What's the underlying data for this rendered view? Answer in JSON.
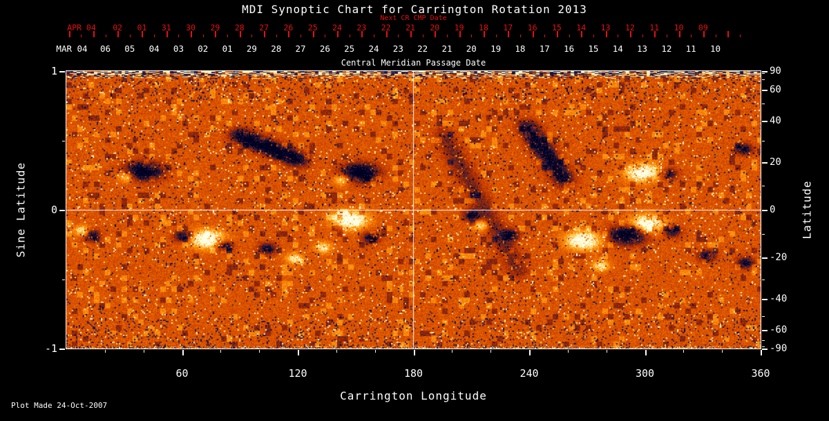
{
  "title": "MDI Synoptic Chart for Carrington Rotation 2013",
  "footer": "Plot Made 24-Oct-2007",
  "colors": {
    "accent_red": "#e81010",
    "foreground": "#ffffff",
    "background": "#000000"
  },
  "axes": {
    "top_red": {
      "label": "Next CR CMP Date",
      "prefix": "APR 04",
      "ticks": [
        "02",
        "01",
        "31",
        "30",
        "29",
        "28",
        "27",
        "26",
        "25",
        "24",
        "23",
        "22",
        "21",
        "20",
        "19",
        "18",
        "17",
        "16",
        "15",
        "14",
        "13",
        "12",
        "11",
        "10",
        "09"
      ]
    },
    "top_white": {
      "label": "Central Meridian Passage Date",
      "prefix": "MAR 04",
      "ticks": [
        "06",
        "05",
        "04",
        "03",
        "02",
        "01",
        "29",
        "28",
        "27",
        "26",
        "25",
        "24",
        "23",
        "22",
        "21",
        "20",
        "19",
        "18",
        "17",
        "16",
        "15",
        "14",
        "13",
        "12",
        "11",
        "10"
      ]
    },
    "bottom": {
      "label": "Carrington Longitude",
      "ticks": [
        "60",
        "120",
        "180",
        "240",
        "300",
        "360"
      ]
    },
    "left": {
      "label": "Sine Latitude",
      "ticks": [
        "1",
        "0",
        "-1"
      ]
    },
    "right": {
      "label": "Latitude",
      "ticks": [
        "90",
        "60",
        "40",
        "20",
        "0",
        "-20",
        "-40",
        "-60",
        "-90"
      ]
    }
  },
  "chart_data": {
    "type": "heatmap",
    "title": "MDI Synoptic Chart for Carrington Rotation 2013",
    "xlabel": "Carrington Longitude",
    "ylabel_left": "Sine Latitude",
    "ylabel_right": "Latitude",
    "top_axis_label": "Central Meridian Passage Date",
    "secondary_top_axis_label": "Next CR CMP Date",
    "xlim": [
      0,
      360
    ],
    "ylim_sine_latitude": [
      -1,
      1
    ],
    "x_major_ticks": [
      60,
      120,
      180,
      240,
      300,
      360
    ],
    "x_minor_tick_step_deg": 20,
    "left_tick_values": [
      1,
      0,
      -1
    ],
    "left_minor_tick_values": [
      0.5,
      -0.5
    ],
    "right_tick_values": [
      90,
      60,
      40,
      20,
      0,
      -20,
      -40,
      -60,
      -90
    ],
    "right_tick_step_deg": 10,
    "grid_lines": {
      "horizontal_at_sine_latitude": 0,
      "vertical_at_longitude": 180
    },
    "field_meaning": {
      "dark_navy_black": "negative magnetic polarity",
      "white_yellow": "positive magnetic polarity",
      "orange_red": "quiet-Sun mottled background"
    },
    "palette_stops": [
      [
        0.0,
        "#000020"
      ],
      [
        0.1,
        "#202060"
      ],
      [
        0.2,
        "#58201c"
      ],
      [
        0.34,
        "#a82806"
      ],
      [
        0.5,
        "#d84c00"
      ],
      [
        0.66,
        "#f87c02"
      ],
      [
        0.8,
        "#ffa81e"
      ],
      [
        0.9,
        "#ffd24e"
      ],
      [
        1.0,
        "#ffffe8"
      ]
    ],
    "active_regions": [
      {
        "lon": 40,
        "sine_lat": 0.28,
        "polarity": "negative",
        "size": "large"
      },
      {
        "lon": 31,
        "sine_lat": 0.24,
        "polarity": "positive",
        "size": "small"
      },
      {
        "lon": 13,
        "sine_lat": -0.18,
        "polarity": "negative",
        "size": "small"
      },
      {
        "lon": 8,
        "sine_lat": -0.15,
        "polarity": "positive",
        "size": "small"
      },
      {
        "lon": 60,
        "sine_lat": -0.19,
        "polarity": "negative",
        "size": "small"
      },
      {
        "lon": 73,
        "sine_lat": -0.21,
        "polarity": "positive",
        "size": "large"
      },
      {
        "lon": 82,
        "sine_lat": -0.26,
        "polarity": "negative",
        "size": "small"
      },
      {
        "lon": 104,
        "sine_lat": -0.28,
        "polarity": "negative",
        "size": "small"
      },
      {
        "lon": 118,
        "sine_lat": -0.35,
        "polarity": "positive",
        "size": "small"
      },
      {
        "lon": 152,
        "sine_lat": 0.27,
        "polarity": "negative",
        "size": "large"
      },
      {
        "lon": 143,
        "sine_lat": 0.22,
        "polarity": "positive",
        "size": "small"
      },
      {
        "lon": 147,
        "sine_lat": -0.07,
        "polarity": "positive",
        "size": "large"
      },
      {
        "lon": 158,
        "sine_lat": -0.2,
        "polarity": "negative",
        "size": "small"
      },
      {
        "lon": 133,
        "sine_lat": -0.27,
        "polarity": "positive",
        "size": "small"
      },
      {
        "lon": 210,
        "sine_lat": -0.04,
        "polarity": "negative",
        "size": "small"
      },
      {
        "lon": 215,
        "sine_lat": -0.11,
        "polarity": "positive",
        "size": "small"
      },
      {
        "lon": 230,
        "sine_lat": -0.18,
        "polarity": "negative",
        "size": "small"
      },
      {
        "lon": 268,
        "sine_lat": -0.22,
        "polarity": "positive",
        "size": "large"
      },
      {
        "lon": 277,
        "sine_lat": -0.4,
        "polarity": "positive",
        "size": "small"
      },
      {
        "lon": 291,
        "sine_lat": -0.18,
        "polarity": "negative",
        "size": "large"
      },
      {
        "lon": 299,
        "sine_lat": 0.27,
        "polarity": "positive",
        "size": "large"
      },
      {
        "lon": 312,
        "sine_lat": 0.26,
        "polarity": "negative",
        "size": "small"
      },
      {
        "lon": 351,
        "sine_lat": 0.44,
        "polarity": "negative",
        "size": "small"
      },
      {
        "lon": 301,
        "sine_lat": -0.1,
        "polarity": "positive",
        "size": "large"
      },
      {
        "lon": 314,
        "sine_lat": -0.15,
        "polarity": "negative",
        "size": "small"
      },
      {
        "lon": 332,
        "sine_lat": -0.33,
        "polarity": "negative",
        "size": "small"
      },
      {
        "lon": 352,
        "sine_lat": -0.38,
        "polarity": "negative",
        "size": "small"
      }
    ],
    "dark_lanes": [
      {
        "lon1": 195,
        "slat1": 0.55,
        "lon2": 235,
        "slat2": -0.45
      },
      {
        "lon1": 238,
        "slat1": 0.62,
        "lon2": 259,
        "slat2": 0.2
      },
      {
        "lon1": 88,
        "slat1": 0.55,
        "lon2": 122,
        "slat2": 0.35
      }
    ]
  }
}
